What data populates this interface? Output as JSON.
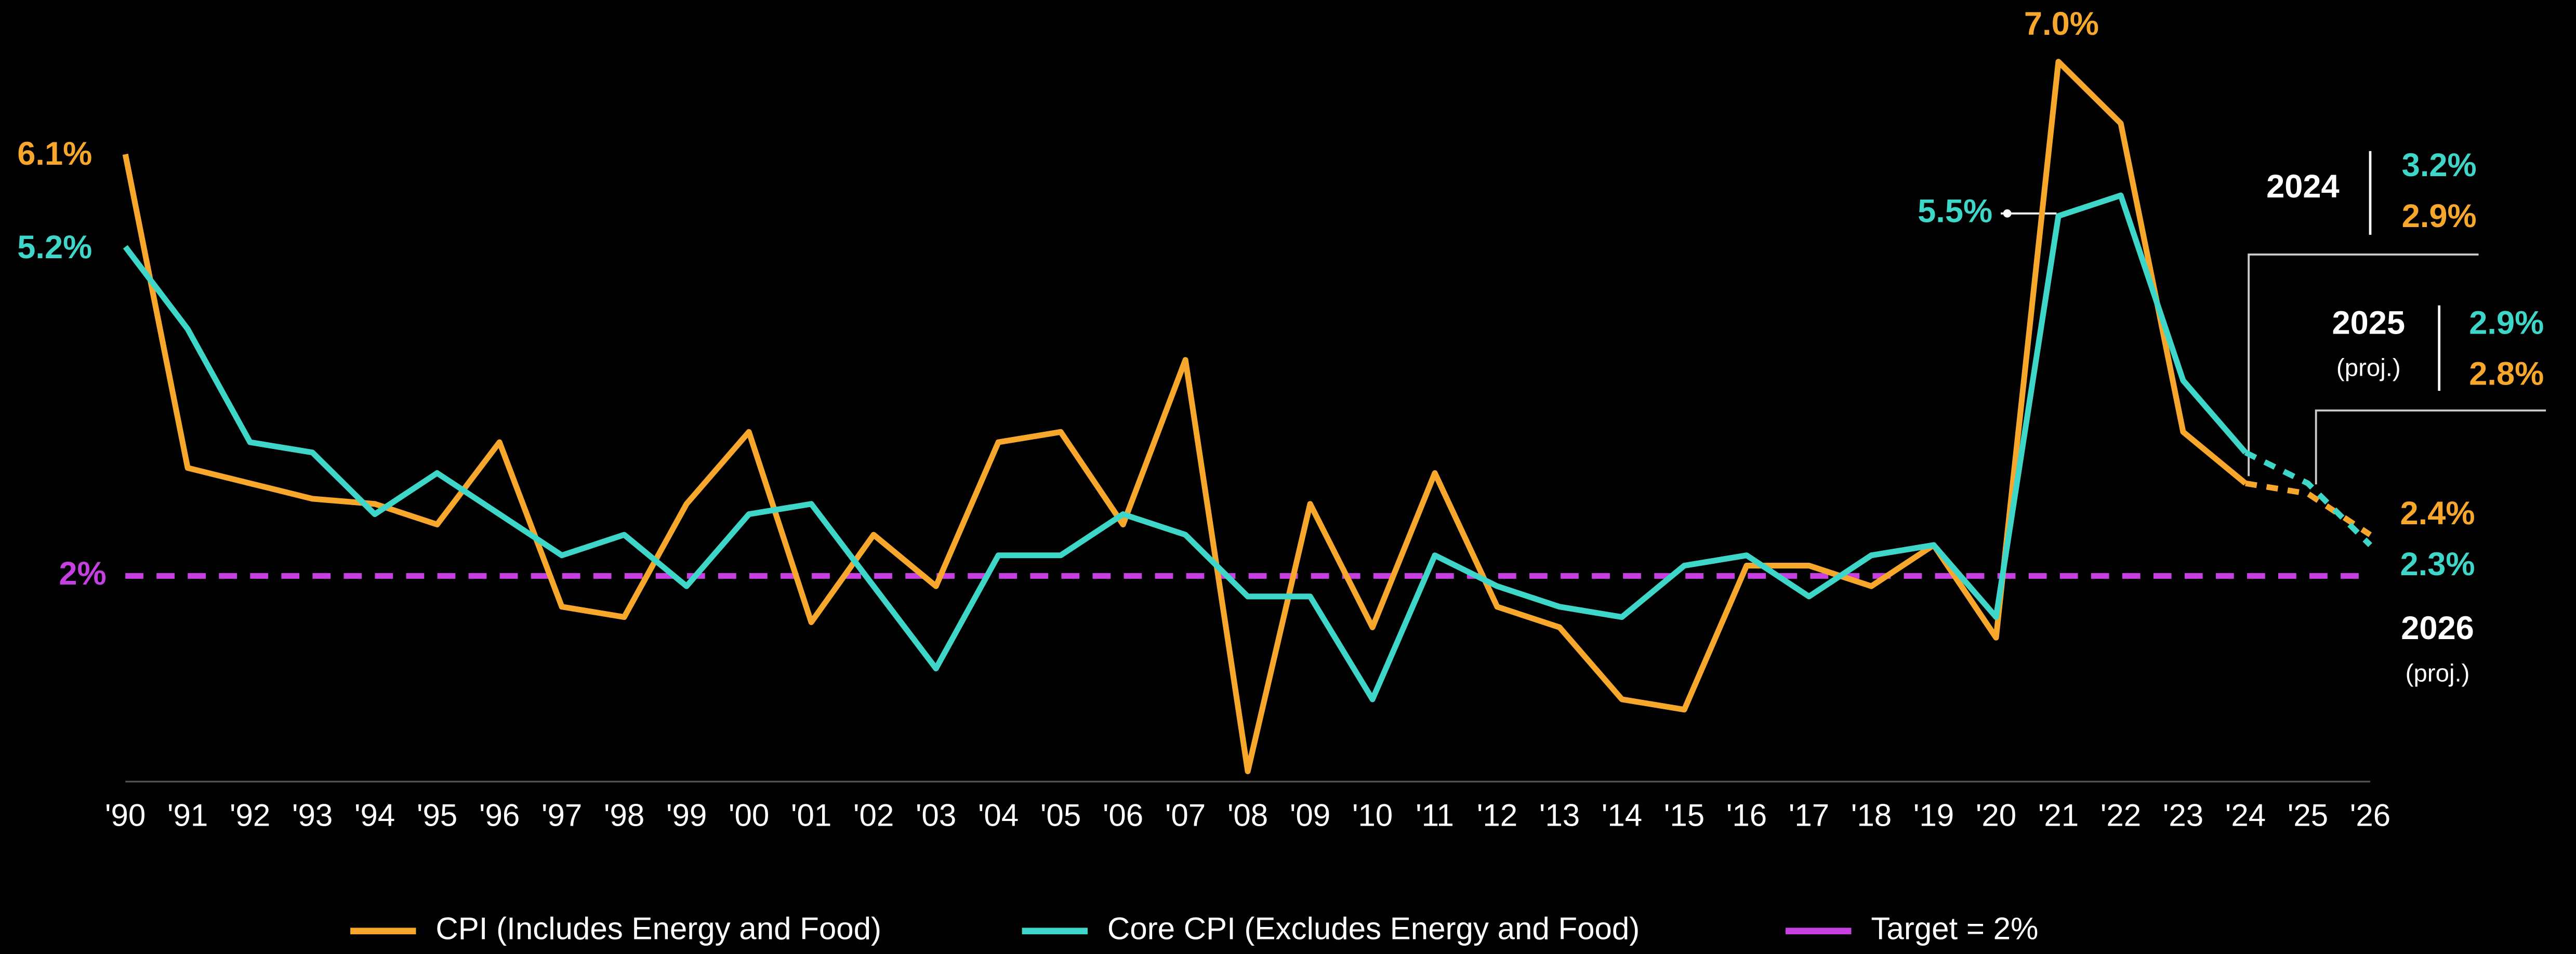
{
  "chart_data": {
    "type": "line",
    "categories": [
      "'90",
      "'91",
      "'92",
      "'93",
      "'94",
      "'95",
      "'96",
      "'97",
      "'98",
      "'99",
      "'00",
      "'01",
      "'02",
      "'03",
      "'04",
      "'05",
      "'06",
      "'07",
      "'08",
      "'09",
      "'10",
      "'11",
      "'12",
      "'13",
      "'14",
      "'15",
      "'16",
      "'17",
      "'18",
      "'19",
      "'20",
      "'21",
      "'22",
      "'23",
      "'24",
      "'25",
      "'26"
    ],
    "ylim": [
      0,
      7.6
    ],
    "dashed_from": "'24",
    "series": [
      {
        "name": "CPI (Includes Energy and Food)",
        "color": "#f7a72b",
        "values": [
          6.1,
          3.05,
          2.9,
          2.75,
          2.7,
          2.5,
          3.3,
          1.7,
          1.6,
          2.7,
          3.4,
          1.55,
          2.4,
          1.9,
          3.3,
          3.4,
          2.5,
          4.1,
          0.1,
          2.7,
          1.5,
          3.0,
          1.7,
          1.5,
          0.8,
          0.7,
          2.1,
          2.1,
          1.9,
          2.3,
          1.4,
          7.0,
          6.4,
          3.4,
          2.9,
          2.8,
          2.4
        ],
        "value_labels": [
          "6.1%",
          null,
          null,
          null,
          null,
          null,
          null,
          null,
          null,
          null,
          null,
          null,
          null,
          null,
          null,
          null,
          null,
          null,
          null,
          null,
          null,
          null,
          null,
          null,
          null,
          null,
          null,
          null,
          null,
          null,
          null,
          "7.0%",
          null,
          null,
          "2.9%",
          "2.8%",
          "2.4%"
        ]
      },
      {
        "name": "Core CPI (Excludes Energy and Food)",
        "color": "#3dd6c8",
        "values": [
          5.2,
          4.4,
          3.3,
          3.2,
          2.6,
          3.0,
          2.6,
          2.2,
          2.4,
          1.9,
          2.6,
          2.7,
          1.9,
          1.1,
          2.2,
          2.2,
          2.6,
          2.4,
          1.8,
          1.8,
          0.8,
          2.2,
          1.9,
          1.7,
          1.6,
          2.1,
          2.2,
          1.8,
          2.2,
          2.3,
          1.6,
          5.5,
          5.7,
          3.9,
          3.2,
          2.9,
          2.3
        ],
        "value_labels": [
          "5.2%",
          null,
          null,
          null,
          null,
          null,
          null,
          null,
          null,
          null,
          null,
          null,
          null,
          null,
          null,
          null,
          null,
          null,
          null,
          null,
          null,
          null,
          null,
          null,
          null,
          null,
          null,
          null,
          null,
          null,
          null,
          "5.5%",
          null,
          null,
          "3.2%",
          "2.9%",
          "2.3%"
        ]
      }
    ],
    "target": {
      "name": "Target = 2%",
      "label": "2%",
      "value": 2,
      "color": "#c63fe0"
    },
    "annotations": [
      {
        "label": "2024"
      },
      {
        "label": "2025",
        "note": "(proj.)"
      },
      {
        "label": "2026",
        "note": "(proj.)"
      }
    ]
  }
}
